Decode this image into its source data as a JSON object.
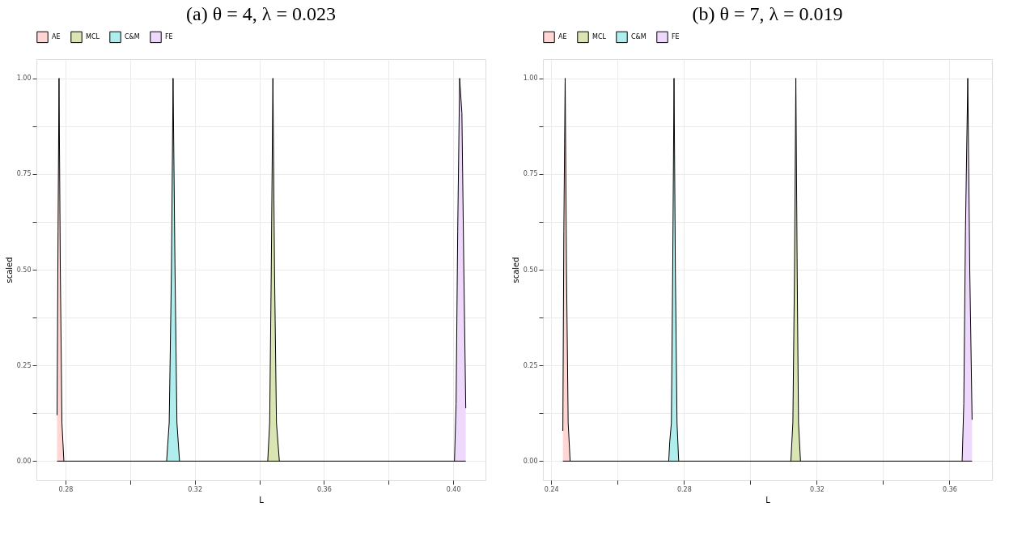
{
  "chart_data": [
    {
      "type": "area",
      "title": "(a) θ = 4, λ = 0.023",
      "xlabel": "L",
      "ylabel": "scaled",
      "legend": "top",
      "grid": true,
      "xlim": [
        0.271,
        0.41
      ],
      "xticks": [
        0.28,
        {
          "value": 0.3,
          "label": null
        },
        0.32,
        {
          "value": 0.34,
          "label": null
        },
        0.36,
        {
          "value": 0.38,
          "label": null
        },
        {
          "value": 0.4,
          "label": "0.40"
        }
      ],
      "ylim": [
        -0.05,
        1.05
      ],
      "yticks": [
        {
          "value": 0,
          "label": "0.00"
        },
        {
          "value": 0.125,
          "label": null
        },
        {
          "value": 0.25,
          "label": "0.25"
        },
        {
          "value": 0.375,
          "label": null
        },
        {
          "value": 0.5,
          "label": "0.50"
        },
        {
          "value": 0.625,
          "label": null
        },
        {
          "value": 0.75,
          "label": "0.75"
        },
        {
          "value": 0.875,
          "label": null
        },
        {
          "value": 1,
          "label": "1.00"
        }
      ],
      "ref_lines": [
        {
          "axis": "y",
          "value": 0,
          "color": "#000000"
        }
      ],
      "series": [
        {
          "name": "AE",
          "color": "#ffd6d3",
          "x": [
            0.2774,
            0.2777,
            0.278,
            0.2784,
            0.2789,
            0.2795
          ],
          "values": [
            0.12,
            0.6,
            1.0,
            0.5,
            0.1,
            0
          ]
        },
        {
          "name": "MCL",
          "color": "#d9e6b3",
          "x": [
            0.3426,
            0.3432,
            0.3437,
            0.3442,
            0.3447,
            0.3453,
            0.3462
          ],
          "values": [
            0,
            0.1,
            0.5,
            1.0,
            0.5,
            0.1,
            0
          ]
        },
        {
          "name": "C&M",
          "color": "#b0eded",
          "x": [
            0.3113,
            0.3121,
            0.3128,
            0.3133,
            0.3139,
            0.3145,
            0.3153
          ],
          "values": [
            0,
            0.1,
            0.5,
            1.0,
            0.5,
            0.1,
            0
          ]
        },
        {
          "name": "FE",
          "color": "#eed8fc",
          "x": [
            0.4004,
            0.4009,
            0.4014,
            0.402,
            0.4027,
            0.4033,
            0.4039
          ],
          "values": [
            0,
            0.15,
            0.6,
            1.0,
            0.909,
            0.5,
            0.138
          ]
        }
      ]
    },
    {
      "type": "area",
      "title": "(b) θ = 7, λ = 0.019",
      "xlabel": "L",
      "ylabel": "scaled",
      "legend": "top",
      "grid": true,
      "xlim": [
        0.2375,
        0.3728
      ],
      "xticks": [
        0.24,
        {
          "value": 0.26,
          "label": null
        },
        0.28,
        {
          "value": 0.3,
          "label": null
        },
        0.32,
        {
          "value": 0.34,
          "label": null
        },
        0.36
      ],
      "ylim": [
        -0.05,
        1.05
      ],
      "yticks": [
        {
          "value": 0,
          "label": "0.00"
        },
        {
          "value": 0.125,
          "label": null
        },
        {
          "value": 0.25,
          "label": "0.25"
        },
        {
          "value": 0.375,
          "label": null
        },
        {
          "value": 0.5,
          "label": "0.50"
        },
        {
          "value": 0.625,
          "label": null
        },
        {
          "value": 0.75,
          "label": "0.75"
        },
        {
          "value": 0.875,
          "label": null
        },
        {
          "value": 1,
          "label": "1.00"
        }
      ],
      "ref_lines": [
        {
          "axis": "y",
          "value": 0,
          "color": "#000000"
        }
      ],
      "series": [
        {
          "name": "AE",
          "color": "#ffd6d3",
          "x": [
            0.2435,
            0.2438,
            0.2442,
            0.2446,
            0.2451,
            0.2457
          ],
          "values": [
            0.079,
            0.6,
            1.0,
            0.5,
            0.1,
            0
          ]
        },
        {
          "name": "MCL",
          "color": "#d9e6b3",
          "x": [
            0.3122,
            0.3128,
            0.3133,
            0.3137,
            0.3141,
            0.3145,
            0.3151
          ],
          "values": [
            0,
            0.1,
            0.5,
            1.0,
            0.5,
            0.1,
            0
          ]
        },
        {
          "name": "C&M",
          "color": "#b0eded",
          "x": [
            0.2754,
            0.2757,
            0.2762,
            0.2766,
            0.277,
            0.2774,
            0.2779,
            0.2784
          ],
          "values": [
            0,
            0.05,
            0.1,
            0.5,
            1.0,
            0.5,
            0.1,
            0
          ]
        },
        {
          "name": "FE",
          "color": "#eed8fc",
          "x": [
            0.3638,
            0.3643,
            0.3648,
            0.3655,
            0.3661,
            0.3668
          ],
          "values": [
            0,
            0.15,
            0.6,
            1.0,
            0.5,
            0.108
          ]
        }
      ]
    }
  ]
}
